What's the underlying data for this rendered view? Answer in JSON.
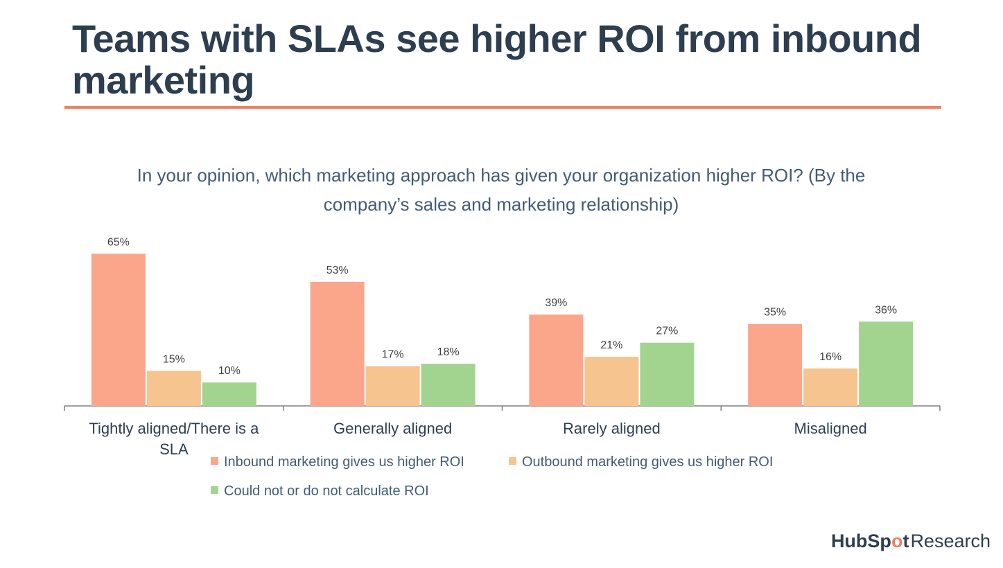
{
  "slide": {
    "title": "Teams with SLAs see higher ROI from inbound marketing"
  },
  "brand": {
    "name_part1": "HubSp",
    "sprocket": "o",
    "name_part2": "t",
    "suffix": "Research",
    "accent_color": "#f0805f"
  },
  "chart_data": {
    "type": "bar",
    "title": "In your opinion, which marketing approach has given your organization higher ROI? (By the company’s sales and marketing relationship)",
    "categories": [
      "Tightly aligned/There is a SLA",
      "Generally aligned",
      "Rarely aligned",
      "Misaligned"
    ],
    "series": [
      {
        "name": "Inbound marketing gives us higher ROI",
        "values": [
          65,
          53,
          39,
          35
        ],
        "labels": [
          "65%",
          "53%",
          "39%",
          "35%"
        ],
        "color": "#fba68a"
      },
      {
        "name": "Outbound marketing gives us higher ROI",
        "values": [
          15,
          17,
          21,
          16
        ],
        "labels": [
          "15%",
          "17%",
          "21%",
          "16%"
        ],
        "color": "#f5c48f"
      },
      {
        "name": "Could not or do not calculate ROI",
        "values": [
          10,
          18,
          27,
          36
        ],
        "labels": [
          "10%",
          "18%",
          "27%",
          "36%"
        ],
        "color": "#a3d48f"
      }
    ],
    "unit": "%",
    "ylim": [
      0,
      70
    ],
    "grid": false,
    "legend_position": "bottom"
  }
}
